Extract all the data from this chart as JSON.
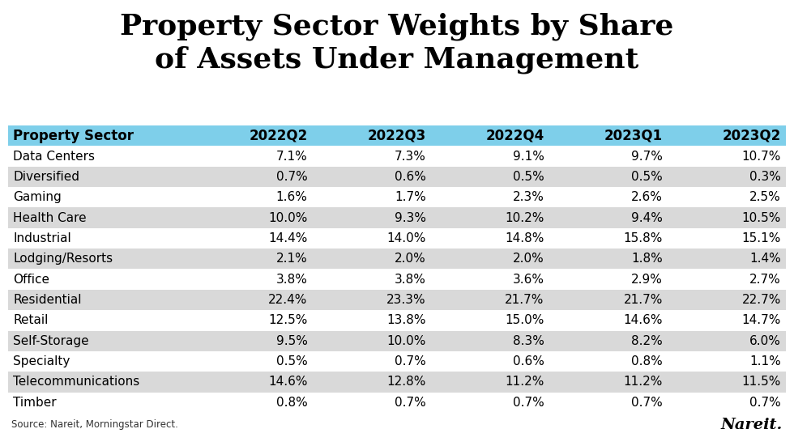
{
  "title": "Property Sector Weights by Share\nof Assets Under Management",
  "columns": [
    "Property Sector",
    "2022Q2",
    "2022Q3",
    "2022Q4",
    "2023Q1",
    "2023Q2"
  ],
  "rows": [
    [
      "Data Centers",
      "7.1%",
      "7.3%",
      "9.1%",
      "9.7%",
      "10.7%"
    ],
    [
      "Diversified",
      "0.7%",
      "0.6%",
      "0.5%",
      "0.5%",
      "0.3%"
    ],
    [
      "Gaming",
      "1.6%",
      "1.7%",
      "2.3%",
      "2.6%",
      "2.5%"
    ],
    [
      "Health Care",
      "10.0%",
      "9.3%",
      "10.2%",
      "9.4%",
      "10.5%"
    ],
    [
      "Industrial",
      "14.4%",
      "14.0%",
      "14.8%",
      "15.8%",
      "15.1%"
    ],
    [
      "Lodging/Resorts",
      "2.1%",
      "2.0%",
      "2.0%",
      "1.8%",
      "1.4%"
    ],
    [
      "Office",
      "3.8%",
      "3.8%",
      "3.6%",
      "2.9%",
      "2.7%"
    ],
    [
      "Residential",
      "22.4%",
      "23.3%",
      "21.7%",
      "21.7%",
      "22.7%"
    ],
    [
      "Retail",
      "12.5%",
      "13.8%",
      "15.0%",
      "14.6%",
      "14.7%"
    ],
    [
      "Self-Storage",
      "9.5%",
      "10.0%",
      "8.3%",
      "8.2%",
      "6.0%"
    ],
    [
      "Specialty",
      "0.5%",
      "0.7%",
      "0.6%",
      "0.8%",
      "1.1%"
    ],
    [
      "Telecommunications",
      "14.6%",
      "12.8%",
      "11.2%",
      "11.2%",
      "11.5%"
    ],
    [
      "Timber",
      "0.8%",
      "0.7%",
      "0.7%",
      "0.7%",
      "0.7%"
    ]
  ],
  "header_bg_color": "#7ecfea",
  "odd_row_color": "#ffffff",
  "even_row_color": "#d9d9d9",
  "header_text_color": "#000000",
  "row_text_color": "#000000",
  "source_text": "Source: Nareit, Morningstar Direct.",
  "nareit_logo_text": "Nareit.",
  "title_fontsize": 26,
  "header_fontsize": 12,
  "cell_fontsize": 11,
  "source_fontsize": 8.5,
  "nareit_fontsize": 14
}
